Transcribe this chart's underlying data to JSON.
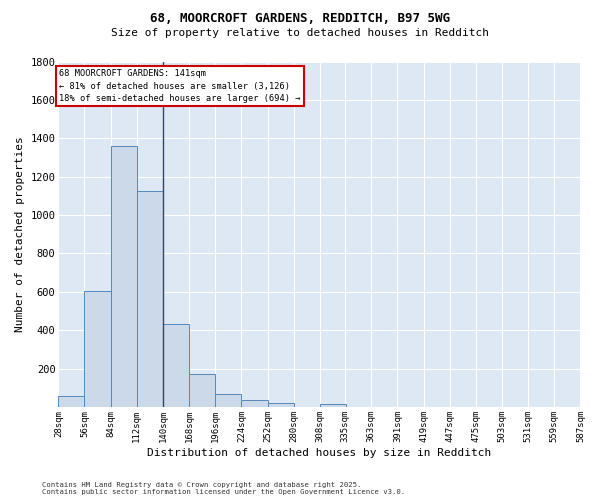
{
  "title1": "68, MOORCROFT GARDENS, REDDITCH, B97 5WG",
  "title2": "Size of property relative to detached houses in Redditch",
  "xlabel": "Distribution of detached houses by size in Redditch",
  "ylabel": "Number of detached properties",
  "footnote1": "Contains HM Land Registry data © Crown copyright and database right 2025.",
  "footnote2": "Contains public sector information licensed under the Open Government Licence v3.0.",
  "bin_edges": [
    28,
    56,
    84,
    112,
    140,
    168,
    196,
    224,
    252,
    280,
    308,
    335,
    363,
    391,
    419,
    447,
    475,
    503,
    531,
    559,
    587
  ],
  "bin_labels": [
    "28sqm",
    "56sqm",
    "84sqm",
    "112sqm",
    "140sqm",
    "168sqm",
    "196sqm",
    "224sqm",
    "252sqm",
    "280sqm",
    "308sqm",
    "335sqm",
    "363sqm",
    "391sqm",
    "419sqm",
    "447sqm",
    "475sqm",
    "503sqm",
    "531sqm",
    "559sqm",
    "587sqm"
  ],
  "counts": [
    55,
    605,
    1360,
    1125,
    430,
    170,
    65,
    35,
    20,
    0,
    15,
    0,
    0,
    0,
    0,
    0,
    0,
    0,
    0,
    0
  ],
  "bar_color": "#ccd9e8",
  "bar_edge_color": "#5588bb",
  "vline_x": 140,
  "vline_color": "#334466",
  "annotation_text": "68 MOORCROFT GARDENS: 141sqm\n← 81% of detached houses are smaller (3,126)\n18% of semi-detached houses are larger (694) →",
  "annotation_box_color": "#ffffff",
  "annotation_box_edge": "#cc0000",
  "plot_bg_color": "#dde8f4",
  "fig_bg_color": "#ffffff",
  "grid_color": "#ffffff",
  "ylim": [
    0,
    1800
  ],
  "yticks": [
    0,
    200,
    400,
    600,
    800,
    1000,
    1200,
    1400,
    1600,
    1800
  ]
}
